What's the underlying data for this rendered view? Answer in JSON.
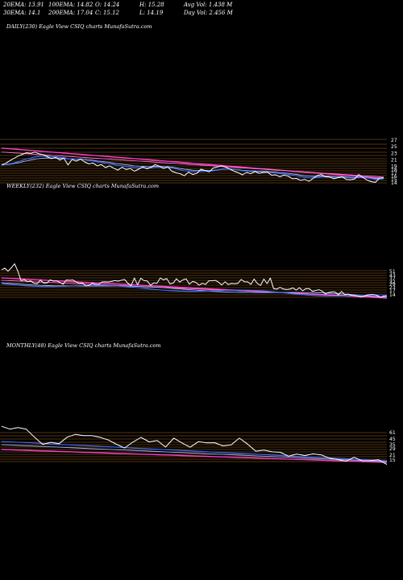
{
  "header": {
    "row1": [
      {
        "label": "20EMA:",
        "value": "13.91"
      },
      {
        "label": "100EMA:",
        "value": "14.82"
      },
      {
        "label": "O:",
        "value": "14.24"
      },
      {
        "label": "H:",
        "value": "15.28"
      },
      {
        "label": "Avg Vol:",
        "value": "1.438  M"
      }
    ],
    "row2": [
      {
        "label": "30EMA:",
        "value": "14.1"
      },
      {
        "label": "200EMA:",
        "value": "17.04"
      },
      {
        "label": "C:",
        "value": "15.12"
      },
      {
        "label": "L:",
        "value": "14.19"
      },
      {
        "label": "Day Vol:",
        "value": "2.456  M"
      }
    ]
  },
  "colors": {
    "background": "#000000",
    "price": "#ffffff",
    "ema_short": "#3b6fff",
    "ema_mid": "#9fb6ff",
    "ema_long": "#ff3cc8",
    "ema_long2": "#ff6fd8",
    "grid_lines": "#c87a2a"
  },
  "chart_data": [
    {
      "type": "line",
      "title": "DAILY(230) Eagle   View  CSIQ charts MunafaSutra.com",
      "tick_labels": [
        "27",
        "25",
        "23",
        "21",
        "19",
        "18",
        "17",
        "16",
        "15",
        "14"
      ],
      "series": [
        {
          "values": [
            19.5,
            20,
            20.8,
            21.5,
            22.2,
            22.7,
            23.2,
            23,
            23.4,
            22.9,
            22.6,
            22,
            21.4,
            21.8,
            21,
            21.5,
            19.5,
            21.2,
            20.6,
            21.3,
            20.4,
            19.8,
            20.1,
            19.2,
            19.6,
            18.7,
            19.2,
            18.5,
            17.9,
            18.8,
            18.1,
            18.4,
            17.6,
            18.2,
            18.9,
            18.3,
            18.8,
            19.6,
            19.1,
            18.4,
            18.9,
            17.6,
            17.1,
            16.8,
            16.2,
            17.3,
            16.6,
            16.9,
            18.2,
            17.8,
            17.4,
            18.6,
            18.9,
            19.2,
            18.8,
            18.2,
            17.6,
            17.1,
            16.5,
            17.2,
            16.8,
            17.5,
            16.9,
            17.2,
            17.3,
            16.4,
            16.5,
            15.9,
            16.4,
            16.1,
            15.3,
            15.4,
            14.8,
            15.1,
            14.5,
            15.4,
            16.3,
            16.6,
            15.9,
            15.8,
            15.3,
            15.6,
            15.9,
            15.1,
            15,
            15.2,
            16.6,
            15.7,
            14.9,
            14.4,
            14.2,
            15.5,
            15.6
          ]
        }
      ]
    },
    {
      "type": "line",
      "title": "WEEKLY(232) Eagle   View  CSIQ charts MunafaSutra.com",
      "tick_labels": [
        "51",
        "43",
        "37",
        "32",
        "29",
        "23",
        "17",
        "14"
      ]
    },
    {
      "type": "line",
      "title": "MONTHLY(48) Eagle   View  CSIQ charts MunafaSutra.com",
      "tick_labels": [
        "61",
        "45",
        "35",
        "29",
        "21",
        "15"
      ]
    }
  ]
}
